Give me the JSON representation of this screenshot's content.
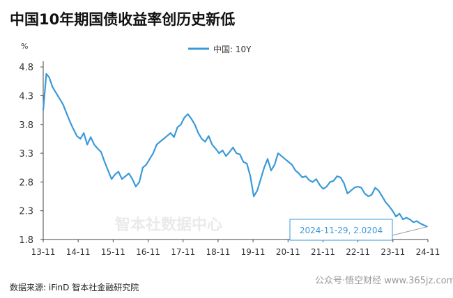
{
  "title": "中国10年期国债收益率创历史新低",
  "source_note": "数据来源: iFinD 智本社金融研究院",
  "watermark": "智本社数据中心",
  "bottom_watermark": "公众号·悟空财经  www.365jz.com",
  "colors": {
    "line": "#3a9ad9",
    "axis": "#444444",
    "text": "#333333",
    "annotation_border": "#3a9ad9"
  },
  "chart_data": {
    "type": "line",
    "ylabel": "%",
    "ylim": [
      2.0,
      4.85
    ],
    "yticks": [
      "4.8",
      "4.3",
      "3.8",
      "3.3",
      "2.8",
      "2.3",
      "1.8"
    ],
    "xticks": [
      "13-11",
      "14-11",
      "15-11",
      "16-11",
      "17-11",
      "18-11",
      "19-11",
      "20-11",
      "21-11",
      "22-11",
      "23-11",
      "24-11"
    ],
    "xlim": [
      2013.83,
      2024.92
    ],
    "legend": {
      "label": "中国: 10Y",
      "placement": "top-center"
    },
    "annotation": {
      "text": "2024-11-29, 2.0204",
      "x": 2024.91,
      "y": 2.02
    },
    "series": [
      {
        "name": "中国: 10Y",
        "x": [
          2013.83,
          2013.92,
          2014.0,
          2014.1,
          2014.2,
          2014.3,
          2014.4,
          2014.5,
          2014.6,
          2014.7,
          2014.8,
          2014.9,
          2015.0,
          2015.1,
          2015.2,
          2015.3,
          2015.4,
          2015.5,
          2015.6,
          2015.7,
          2015.8,
          2015.9,
          2016.0,
          2016.1,
          2016.2,
          2016.3,
          2016.4,
          2016.5,
          2016.6,
          2016.7,
          2016.8,
          2016.9,
          2017.0,
          2017.1,
          2017.2,
          2017.3,
          2017.4,
          2017.5,
          2017.6,
          2017.7,
          2017.8,
          2017.9,
          2018.0,
          2018.1,
          2018.2,
          2018.3,
          2018.4,
          2018.5,
          2018.6,
          2018.7,
          2018.8,
          2018.9,
          2019.0,
          2019.1,
          2019.2,
          2019.3,
          2019.4,
          2019.5,
          2019.6,
          2019.7,
          2019.8,
          2019.9,
          2020.0,
          2020.1,
          2020.2,
          2020.3,
          2020.4,
          2020.5,
          2020.6,
          2020.7,
          2020.8,
          2020.9,
          2021.0,
          2021.1,
          2021.2,
          2021.3,
          2021.4,
          2021.5,
          2021.6,
          2021.7,
          2021.8,
          2021.9,
          2022.0,
          2022.1,
          2022.2,
          2022.3,
          2022.4,
          2022.5,
          2022.6,
          2022.7,
          2022.8,
          2022.9,
          2023.0,
          2023.1,
          2023.2,
          2023.3,
          2023.4,
          2023.5,
          2023.6,
          2023.7,
          2023.8,
          2023.9,
          2024.0,
          2024.1,
          2024.2,
          2024.3,
          2024.4,
          2024.5,
          2024.6,
          2024.7,
          2024.8,
          2024.91
        ],
        "y": [
          4.05,
          4.68,
          4.62,
          4.45,
          4.35,
          4.25,
          4.15,
          4.0,
          3.85,
          3.72,
          3.6,
          3.55,
          3.65,
          3.45,
          3.58,
          3.45,
          3.38,
          3.32,
          3.15,
          3.0,
          2.85,
          2.93,
          2.98,
          2.85,
          2.9,
          2.95,
          2.85,
          2.72,
          2.8,
          3.05,
          3.1,
          3.2,
          3.3,
          3.45,
          3.5,
          3.55,
          3.6,
          3.65,
          3.58,
          3.75,
          3.8,
          3.92,
          3.98,
          3.9,
          3.8,
          3.65,
          3.55,
          3.5,
          3.6,
          3.45,
          3.38,
          3.3,
          3.35,
          3.25,
          3.32,
          3.4,
          3.3,
          3.28,
          3.15,
          3.12,
          2.9,
          2.55,
          2.65,
          2.85,
          3.05,
          3.2,
          3.0,
          3.1,
          3.3,
          3.25,
          3.2,
          3.15,
          3.1,
          3.0,
          2.95,
          2.88,
          2.9,
          2.83,
          2.8,
          2.85,
          2.75,
          2.68,
          2.72,
          2.8,
          2.82,
          2.9,
          2.88,
          2.78,
          2.6,
          2.65,
          2.7,
          2.72,
          2.7,
          2.6,
          2.55,
          2.58,
          2.7,
          2.65,
          2.55,
          2.45,
          2.38,
          2.3,
          2.2,
          2.25,
          2.15,
          2.18,
          2.15,
          2.1,
          2.12,
          2.08,
          2.05,
          2.02
        ]
      }
    ]
  }
}
